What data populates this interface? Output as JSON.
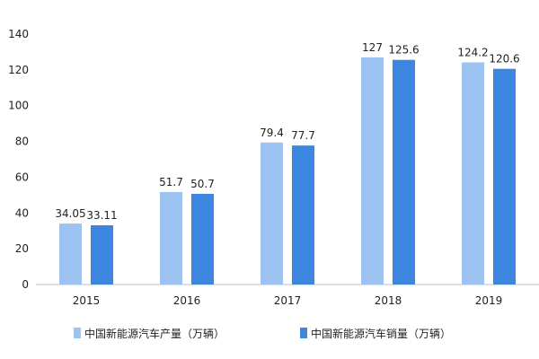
{
  "chart_data": {
    "type": "bar",
    "categories": [
      "2015",
      "2016",
      "2017",
      "2018",
      "2019"
    ],
    "series": [
      {
        "name": "中国新能源汽车产量（万辆）",
        "values": [
          34.05,
          51.7,
          79.4,
          127,
          124.2
        ],
        "color": "#9dc3f0"
      },
      {
        "name": "中国新能源汽车销量（万辆）",
        "values": [
          33.11,
          50.7,
          77.7,
          125.6,
          120.6
        ],
        "color": "#3d86e0"
      }
    ],
    "value_labels": [
      [
        "34.05",
        "51.7",
        "79.4",
        "127",
        "124.2"
      ],
      [
        "33.11",
        "50.7",
        "77.7",
        "125.6",
        "120.6"
      ]
    ],
    "yticks": [
      "0",
      "20",
      "40",
      "60",
      "80",
      "100",
      "120",
      "140"
    ],
    "ylim": [
      0,
      140
    ],
    "title": "",
    "xlabel": "",
    "ylabel": "",
    "grid": false,
    "legend": "bottom"
  }
}
